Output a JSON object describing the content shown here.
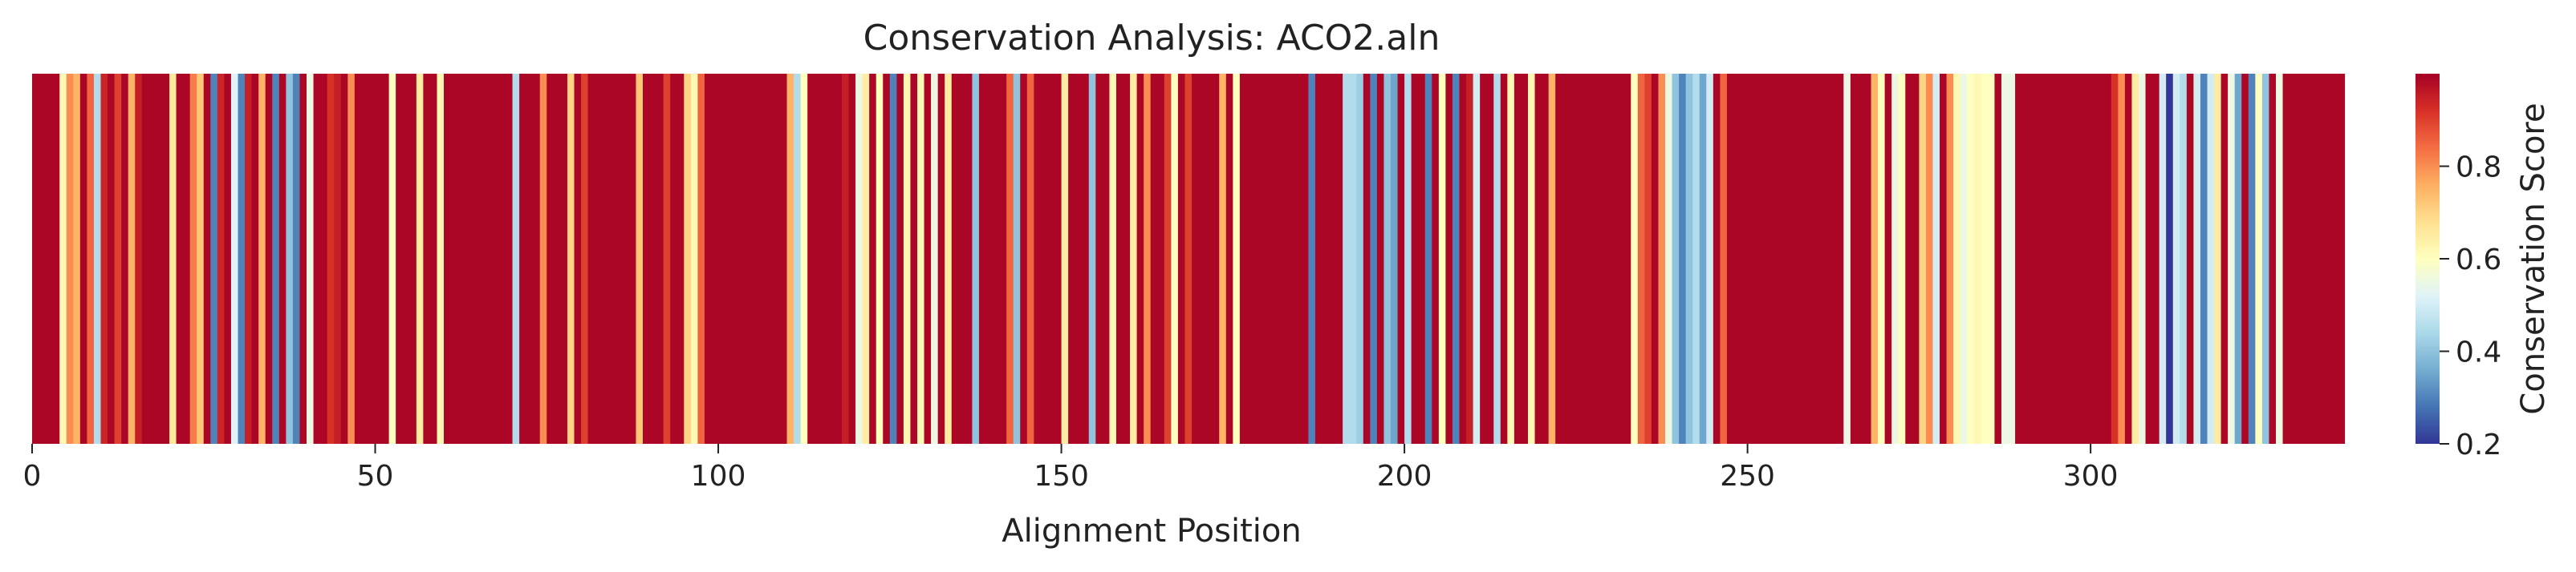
{
  "chart_data": {
    "type": "heatmap",
    "title": "Conservation Analysis: ACO2.aln",
    "xlabel": "Alignment Position",
    "colorbar_label": "Conservation Score",
    "colormap": "RdYlBu_r",
    "xlim": [
      0,
      327
    ],
    "xticks": [
      0,
      50,
      100,
      150,
      200,
      250,
      300
    ],
    "colorbar_range": [
      0.2,
      1.0
    ],
    "colorbar_ticks": [
      "0.2",
      "0.4",
      "0.6",
      "0.8"
    ],
    "colors": {
      "low": "#313695",
      "mid": "#ffffbf",
      "high": "#a50026"
    },
    "values": [
      0.99,
      0.99,
      0.99,
      0.99,
      0.62,
      0.8,
      0.75,
      0.99,
      0.85,
      0.45,
      0.94,
      0.99,
      0.9,
      0.99,
      0.75,
      0.95,
      0.99,
      0.99,
      0.99,
      0.99,
      0.66,
      0.99,
      0.99,
      0.82,
      0.72,
      0.99,
      0.3,
      0.94,
      0.99,
      0.52,
      0.3,
      0.95,
      0.99,
      0.75,
      0.99,
      0.3,
      0.99,
      0.4,
      0.3,
      0.99,
      0.55,
      0.99,
      0.99,
      0.92,
      0.95,
      0.99,
      0.8,
      0.99,
      0.99,
      0.99,
      0.99,
      0.99,
      0.6,
      0.99,
      0.99,
      0.99,
      0.65,
      0.99,
      0.99,
      0.62,
      0.99,
      0.99,
      0.99,
      0.99,
      0.99,
      0.99,
      0.99,
      0.99,
      0.99,
      0.99,
      0.45,
      0.99,
      0.99,
      0.99,
      0.8,
      0.99,
      0.99,
      0.99,
      0.7,
      0.99,
      0.9,
      0.99,
      0.99,
      0.99,
      0.99,
      0.99,
      0.99,
      0.99,
      0.72,
      0.99,
      0.99,
      0.99,
      0.9,
      0.99,
      0.99,
      0.7,
      0.62,
      0.85,
      0.99,
      0.99,
      0.99,
      0.99,
      0.99,
      0.99,
      0.99,
      0.99,
      0.99,
      0.99,
      0.99,
      0.99,
      0.75,
      0.45,
      0.6,
      0.99,
      0.99,
      0.99,
      0.99,
      0.99,
      0.95,
      0.99,
      0.55,
      0.65,
      0.99,
      0.6,
      0.99,
      0.3,
      0.99,
      0.62,
      0.99,
      0.62,
      0.99,
      0.55,
      0.99,
      0.65,
      0.99,
      0.99,
      0.99,
      0.4,
      0.99,
      0.99,
      0.99,
      0.99,
      0.85,
      0.4,
      0.99,
      0.85,
      0.99,
      0.99,
      0.99,
      0.99,
      0.65,
      0.99,
      0.99,
      0.99,
      0.4,
      0.99,
      0.99,
      0.62,
      0.99,
      0.99,
      0.65,
      0.99,
      0.8,
      0.99,
      0.99,
      0.9,
      0.6,
      0.99,
      0.9,
      0.99,
      0.99,
      0.99,
      0.99,
      0.75,
      0.99,
      0.6,
      0.99,
      0.99,
      0.99,
      0.99,
      0.99,
      0.99,
      0.99,
      0.99,
      0.99,
      0.99,
      0.3,
      0.99,
      0.99,
      0.99,
      0.99,
      0.45,
      0.45,
      0.42,
      0.99,
      0.3,
      0.99,
      0.4,
      0.35,
      0.99,
      0.45,
      0.99,
      0.99,
      0.3,
      0.99,
      0.6,
      0.99,
      0.3,
      0.99,
      0.95,
      0.5,
      0.99,
      0.99,
      0.45,
      0.99,
      0.62,
      0.99,
      0.99,
      0.62,
      0.99,
      0.99,
      0.75,
      0.99,
      0.99,
      0.99,
      0.99,
      0.99,
      0.99,
      0.99,
      0.99,
      0.99,
      0.99,
      0.99,
      0.6,
      0.85,
      0.9,
      0.99,
      0.8,
      0.55,
      0.4,
      0.3,
      0.4,
      0.45,
      0.35,
      0.5,
      0.99,
      0.85,
      0.99,
      0.99,
      0.99,
      0.99,
      0.99,
      0.99,
      0.99,
      0.99,
      0.99,
      0.99,
      0.99,
      0.99,
      0.99,
      0.99,
      0.99,
      0.99,
      0.99,
      0.55,
      0.99,
      0.99,
      0.99,
      0.75,
      0.6,
      0.99,
      0.55,
      0.6,
      0.99,
      0.99,
      0.7,
      0.8,
      0.5,
      0.99,
      0.8,
      0.62,
      0.55,
      0.6,
      0.62,
      0.6,
      0.6,
      0.99,
      0.55,
      0.55,
      0.99,
      0.99,
      0.99,
      0.99,
      0.99,
      0.99,
      0.99,
      0.99,
      0.99,
      0.99,
      0.99,
      0.99,
      0.99,
      0.99,
      0.92,
      0.8,
      0.99,
      0.65,
      0.55,
      0.99,
      0.99,
      0.5,
      0.2,
      0.5,
      0.45,
      0.99,
      0.5,
      0.3,
      0.5,
      0.65,
      0.99,
      0.55,
      0.35,
      0.99,
      0.3,
      0.6,
      0.4,
      0.99,
      0.55,
      0.99,
      0.99,
      0.99,
      0.99,
      0.99,
      0.99,
      0.99,
      0.99,
      0.99
    ]
  }
}
